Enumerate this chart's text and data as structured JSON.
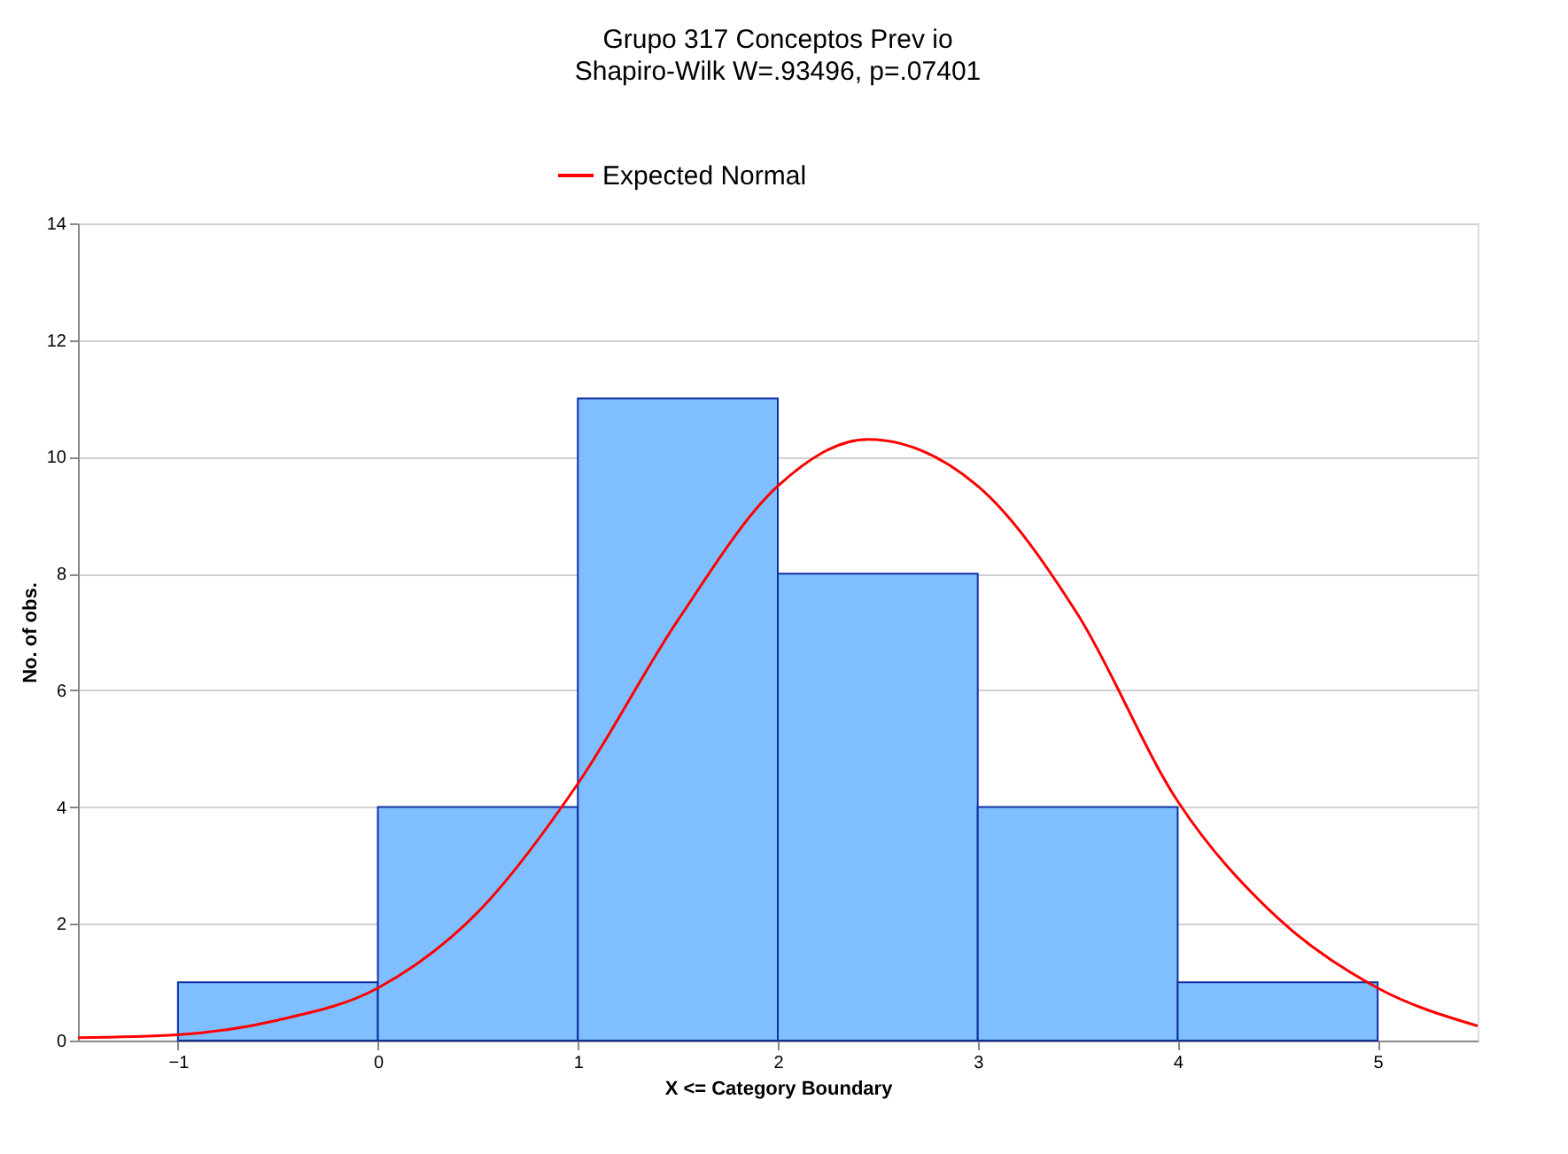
{
  "chart_data": {
    "type": "histogram",
    "title": "Grupo 317 Conceptos Prev io",
    "subtitle": "Shapiro-Wilk W=.93496, p=.07401",
    "xlabel": "X <= Category  Boundary",
    "ylabel": "No. of obs.",
    "bins": [
      -1,
      0,
      1,
      2,
      3,
      4,
      5
    ],
    "values": [
      1,
      4,
      11,
      8,
      4,
      1
    ],
    "color": "#80bfff",
    "series": [
      {
        "name": "Expected Normal",
        "type": "line",
        "color": "#ff0000",
        "x": [
          -1.5,
          -1,
          -0.5,
          0,
          0.5,
          1,
          1.5,
          2,
          2.45,
          3,
          3.5,
          4,
          4.5,
          5,
          5.5
        ],
        "values": [
          0.05,
          0.1,
          0.35,
          0.9,
          2.2,
          4.4,
          7.2,
          9.5,
          10.3,
          9.5,
          7.3,
          4.1,
          2.1,
          0.9,
          0.25
        ]
      }
    ],
    "xlim": [
      -1.5,
      5.5
    ],
    "xticks": [
      -1,
      0,
      1,
      2,
      3,
      4,
      5
    ],
    "ylim": [
      0,
      14
    ],
    "yticks": [
      0,
      2,
      4,
      6,
      8,
      10,
      12,
      14
    ],
    "grid": "y",
    "legend": "top"
  }
}
